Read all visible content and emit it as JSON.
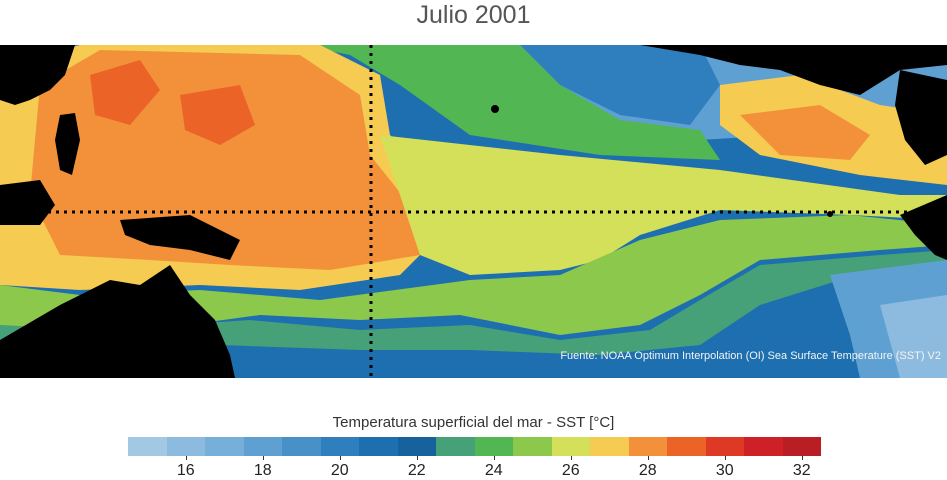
{
  "title": "Julio 2001",
  "source": "Fuente: NOAA Optimum Interpolation (OI) Sea Surface Temperature (SST) V2",
  "colorbar": {
    "title": "Temperatura superficial del mar - SST  [°C]",
    "min": 15,
    "max": 33,
    "step": 1,
    "colors": [
      "#a3c8e4",
      "#8cbbdf",
      "#76afda",
      "#5fa0d2",
      "#4890c8",
      "#2f7fbe",
      "#1d6fb0",
      "#17619c",
      "#46a078",
      "#52b752",
      "#8cc84b",
      "#d4e05a",
      "#f6cb52",
      "#f3913a",
      "#ec6328",
      "#dd3925",
      "#cd2027",
      "#b81e23"
    ],
    "tick_values": [
      16,
      18,
      20,
      22,
      24,
      26,
      28,
      30,
      32
    ],
    "tick_labels": [
      "16",
      "18",
      "20",
      "22",
      "24",
      "26",
      "28",
      "30",
      "32"
    ]
  },
  "map": {
    "land_color": "#000000",
    "reference_lines": [
      "equator",
      "date-line (180°)"
    ],
    "reference_line_style": "dotted black"
  }
}
